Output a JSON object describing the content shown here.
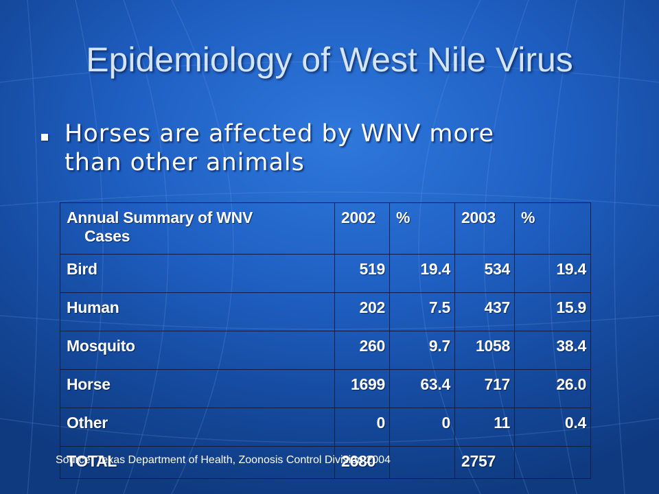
{
  "title": "Epidemiology of West Nile Virus",
  "bullet": {
    "line1": "Horses are affected by WNV more",
    "line2": "than other animals"
  },
  "table": {
    "header": {
      "label_line1": "Annual Summary of WNV",
      "label_line2": "Cases",
      "col1": "2002",
      "col2": "%",
      "col3": "2003",
      "col4": "%"
    },
    "rows": [
      {
        "label": "Bird",
        "v2002": "519",
        "p2002": "19.4",
        "v2003": "534",
        "p2003": "19.4"
      },
      {
        "label": "Human",
        "v2002": "202",
        "p2002": "7.5",
        "v2003": "437",
        "p2003": "15.9"
      },
      {
        "label": "Mosquito",
        "v2002": "260",
        "p2002": "9.7",
        "v2003": "1058",
        "p2003": "38.4"
      },
      {
        "label": "Horse",
        "v2002": "1699",
        "p2002": "63.4",
        "v2003": "717",
        "p2003": "26.0"
      },
      {
        "label": "Other",
        "v2002": "0",
        "p2002": "0",
        "v2003": "11",
        "p2003": "0.4"
      }
    ],
    "total": {
      "label": "TOTAL",
      "v2002": "2680",
      "p2002": "",
      "v2003": "2757",
      "p2003": ""
    }
  },
  "source": "Source: Texas Department of Health, Zoonosis Control Division 2004",
  "colors": {
    "background": "#1f5fc2",
    "title": "#d3e4f7",
    "text": "#ffffff",
    "grid_border": "#0b1f45"
  }
}
